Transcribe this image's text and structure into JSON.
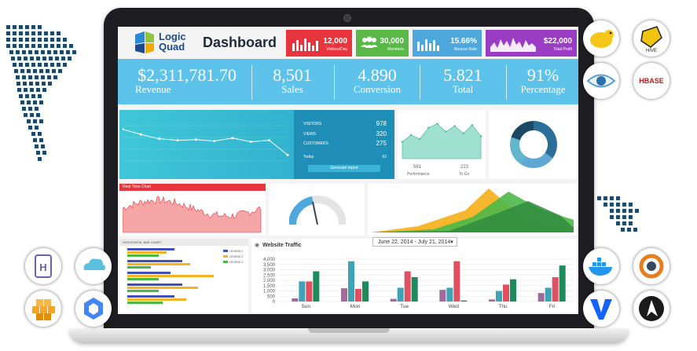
{
  "brand": {
    "logo_line1": "Logic",
    "logo_line2": "Quad",
    "title": "Dashboard"
  },
  "stats": [
    {
      "value": "12,000",
      "label": "Visitors/Day",
      "color": "#e8343c"
    },
    {
      "value": "30,000",
      "label": "Members",
      "color": "#58b947"
    },
    {
      "value": "15.66%",
      "label": "Bounce Rate",
      "color": "#4ea8de"
    },
    {
      "value": "$22,000",
      "label": "Total Profit",
      "color": "#9b3cc4"
    }
  ],
  "kpis": [
    {
      "value": "$2,311,781.70",
      "label": "Revenue"
    },
    {
      "value": "8,501",
      "label": "Sales"
    },
    {
      "value": "4.890",
      "label": "Conversion"
    },
    {
      "value": "5.821",
      "label": "Total"
    },
    {
      "value": "91%",
      "label": "Percentage"
    }
  ],
  "traffic_panel": {
    "rows": [
      {
        "label": "VISITORS",
        "value": "978"
      },
      {
        "label": "VIEWS",
        "value": "320"
      },
      {
        "label": "CUSTOMERS",
        "value": "275"
      }
    ],
    "total_label": "Today",
    "total_value": "62",
    "button_label": "Generate report",
    "line_values": [
      55,
      48,
      42,
      40,
      41,
      39,
      43,
      38,
      40,
      20
    ]
  },
  "performance_panel": {
    "stat1_value": "561",
    "stat1_label": "Performance",
    "stat2_value": "223",
    "stat2_label": "To Go",
    "values": [
      30,
      42,
      35,
      55,
      62,
      48,
      58,
      45,
      60,
      40
    ]
  },
  "donut": {
    "segments": [
      35,
      25,
      20,
      20
    ],
    "colors": [
      "#2a6f97",
      "#5fa8d3",
      "#62b6cb",
      "#1b4965"
    ]
  },
  "realtime": {
    "title": "Real Time Chart"
  },
  "horizontal_bar": {
    "title": "HORIZONTAL BAR CHART",
    "legend": [
      "LEGEND 1",
      "LEGEND 2",
      "LEGEND 3"
    ]
  },
  "website_traffic": {
    "title": "Website Traffic",
    "date_range": "June 22, 2014 - July 21, 2014"
  },
  "chart_data": {
    "type": "bar",
    "title": "Website Traffic",
    "categories": [
      "Sun",
      "Mon",
      "Tue",
      "Wed",
      "Thu",
      "Fri"
    ],
    "ylim": [
      0,
      4000
    ],
    "yticks": [
      "0",
      "500",
      "1,000",
      "1,500",
      "2,000",
      "2,500",
      "3,000",
      "3,500",
      "4,000"
    ],
    "series": [
      {
        "values": [
          300,
          1250,
          250,
          1100,
          200,
          800
        ],
        "color": "#a06a9a"
      },
      {
        "values": [
          1900,
          3800,
          1300,
          1300,
          1000,
          1300
        ],
        "color": "#3fa3b8"
      },
      {
        "values": [
          1900,
          1200,
          2850,
          3800,
          1600,
          2300
        ],
        "color": "#e15060"
      },
      {
        "values": [
          2850,
          1900,
          2300,
          100,
          2100,
          3400
        ],
        "color": "#1f8a5c"
      }
    ]
  },
  "tech_logos": [
    "hadoop-logo",
    "hive-logo",
    "spark-eye-logo",
    "hbase-logo",
    "heroku-logo",
    "cloud-logo",
    "aws-logo",
    "gcp-logo",
    "docker-logo",
    "jenkins-logo",
    "vagrant-logo",
    "ansible-logo"
  ]
}
